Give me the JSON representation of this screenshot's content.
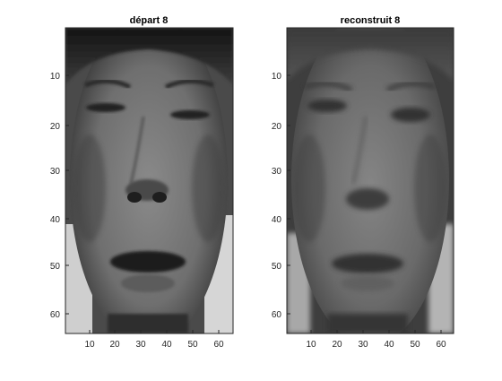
{
  "figure": {
    "panels": [
      {
        "title": "départ 8",
        "image_kind": "grayscale face photo (original)",
        "xticks": [
          "10",
          "20",
          "30",
          "40",
          "50",
          "60"
        ],
        "yticks": [
          "10",
          "20",
          "30",
          "40",
          "50",
          "60"
        ]
      },
      {
        "title": "reconstruit 8",
        "image_kind": "grayscale face reconstruction",
        "xticks": [
          "10",
          "20",
          "30",
          "40",
          "50",
          "60"
        ],
        "yticks": [
          "10",
          "20",
          "30",
          "40",
          "50",
          "60"
        ]
      }
    ],
    "colors": {
      "background": "#ffffff",
      "axis": "#262626"
    }
  }
}
